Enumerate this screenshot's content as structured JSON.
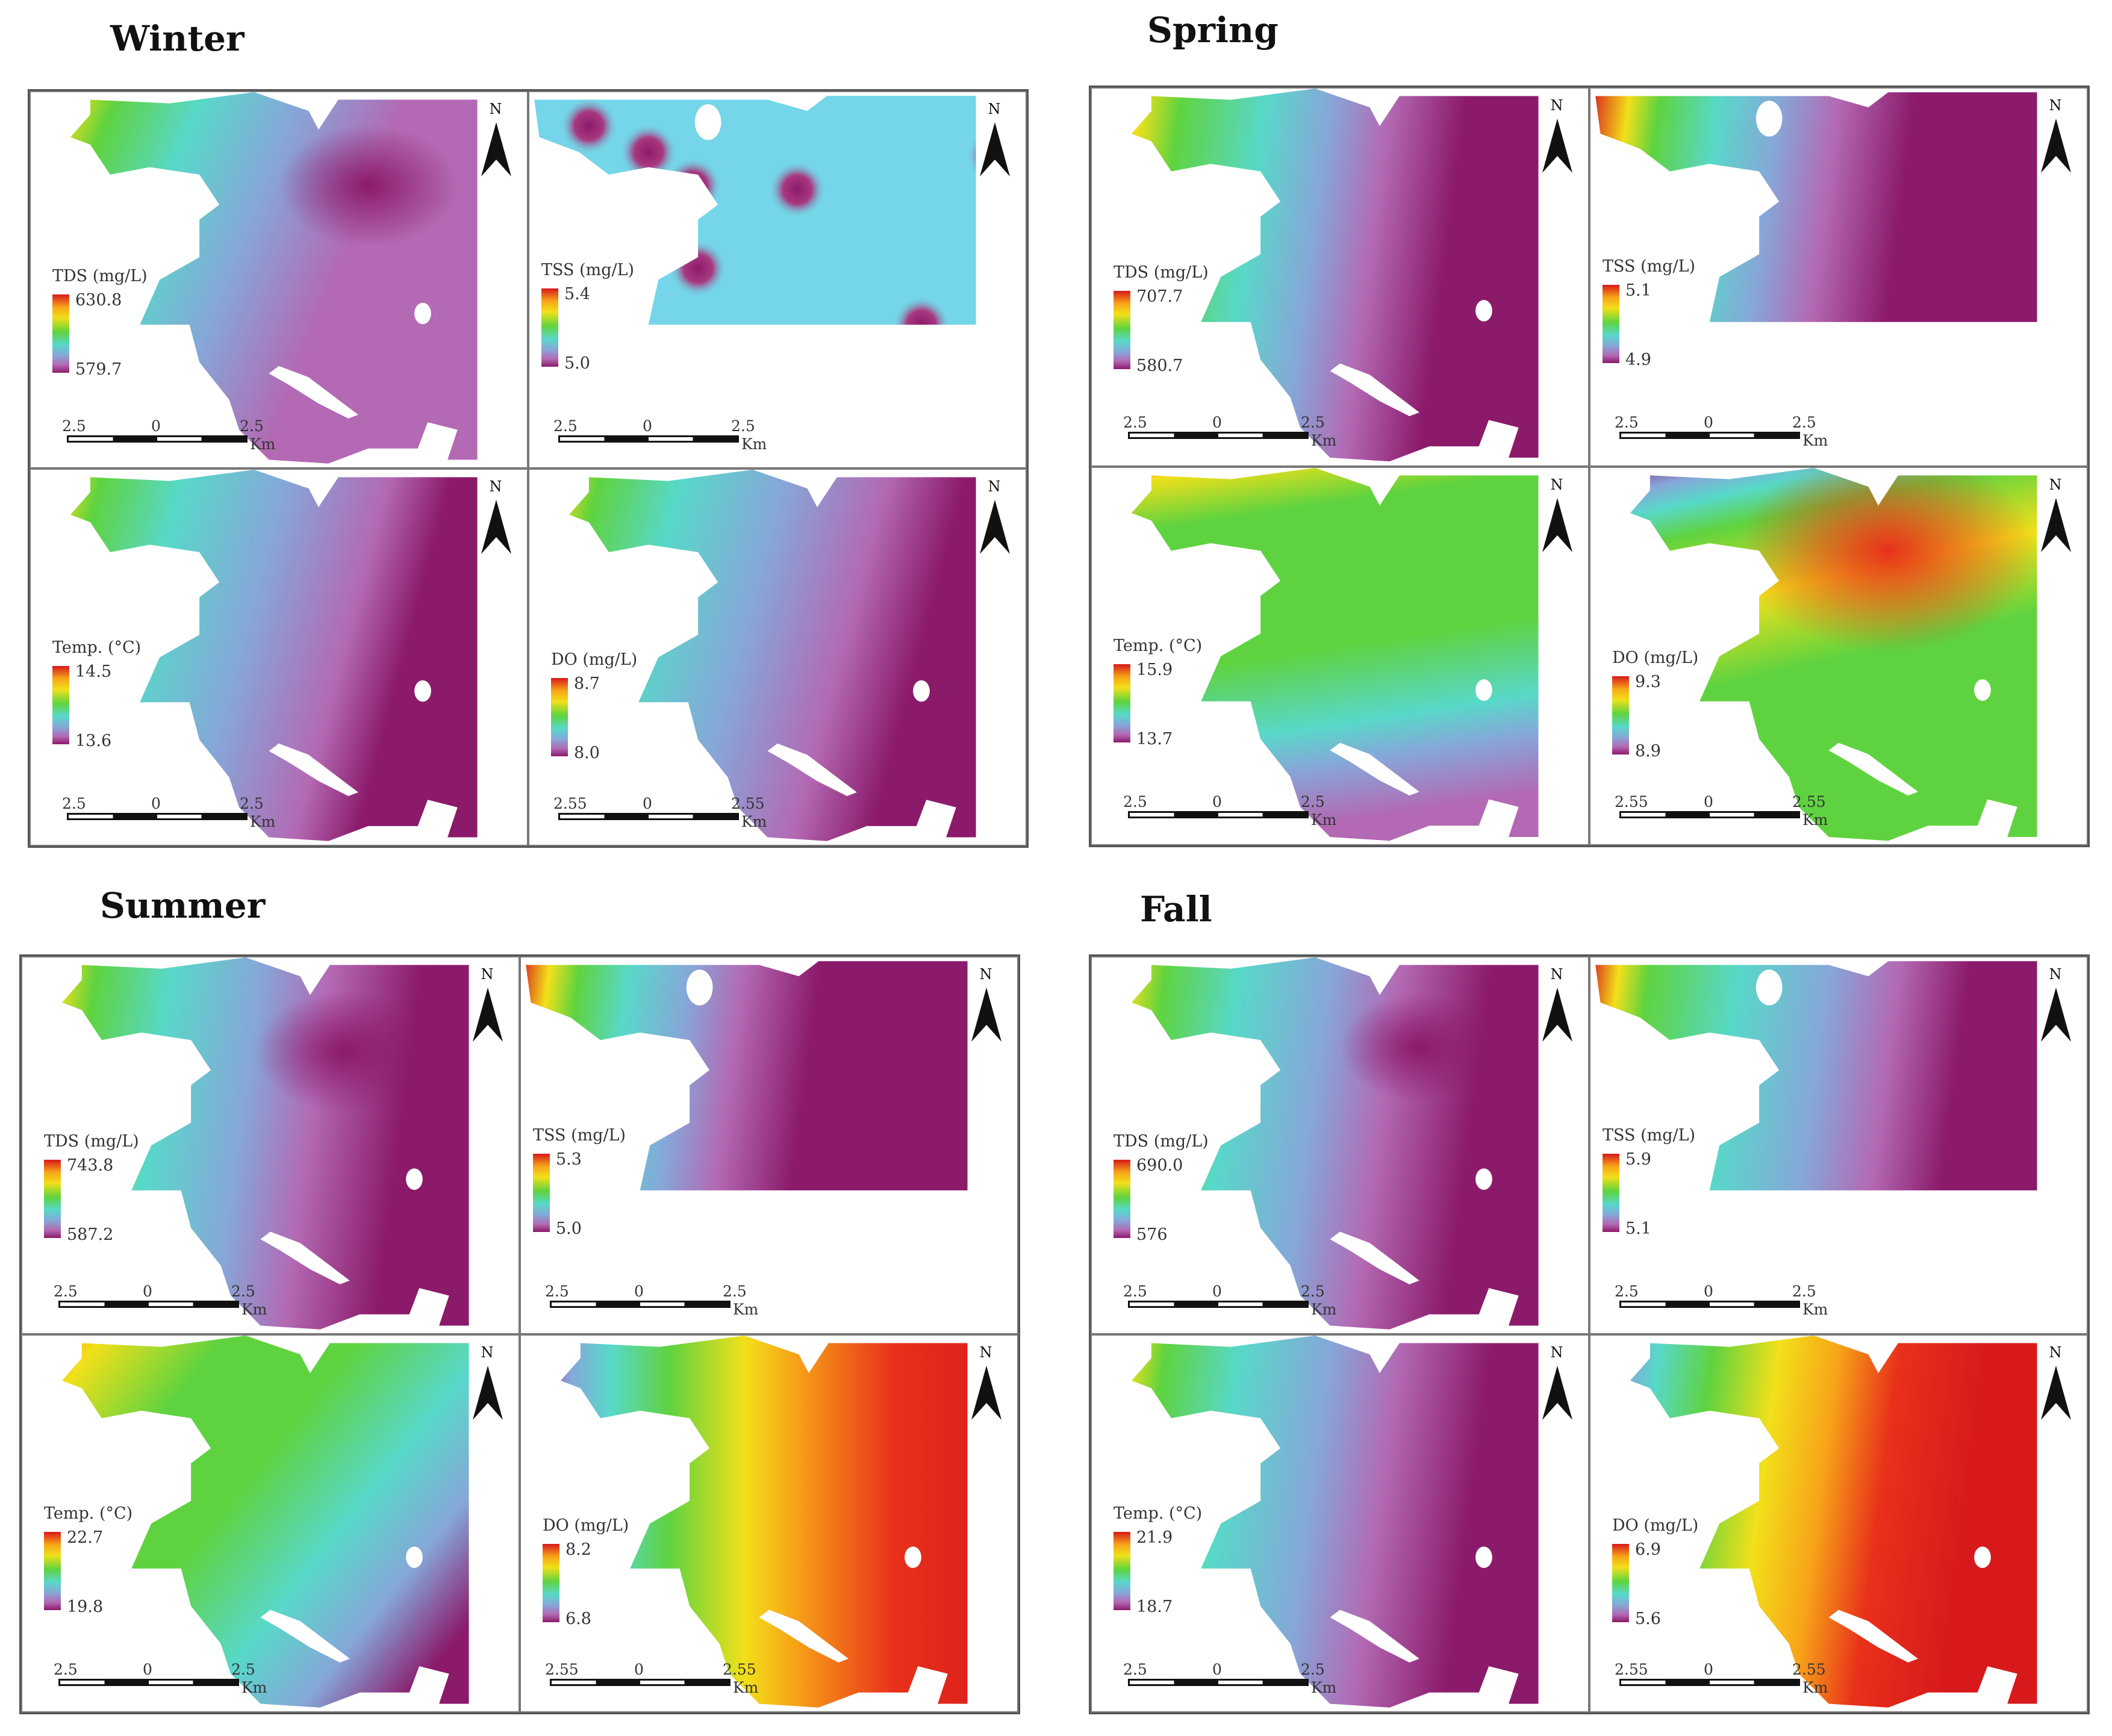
{
  "scale": {
    "left": "2.5",
    "mid": "0",
    "right": "2.5",
    "unit": "Km",
    "alt_left": "2.55",
    "alt_right": "2.55"
  },
  "north_label": "N",
  "colors": {
    "high": "#d7191c",
    "mid": "#5fd33f",
    "low_cyan": "#58d8c9",
    "low": "#8b1a6b"
  },
  "seasons": [
    {
      "title": "Winter",
      "panels": [
        {
          "param": "TDS (mg/L)",
          "max": "630.8",
          "min": "579.7",
          "scale_alt": false
        },
        {
          "param": "TSS (mg/L)",
          "max": "5.4",
          "min": "5.0",
          "scale_alt": false
        },
        {
          "param": "Temp. (°C)",
          "max": "14.5",
          "min": "13.6",
          "scale_alt": false
        },
        {
          "param": "DO (mg/L)",
          "max": "8.7",
          "min": "8.0",
          "scale_alt": true
        }
      ]
    },
    {
      "title": "Spring",
      "panels": [
        {
          "param": "TDS (mg/L)",
          "max": "707.7",
          "min": "580.7",
          "scale_alt": false
        },
        {
          "param": "TSS (mg/L)",
          "max": "5.1",
          "min": "4.9",
          "scale_alt": false
        },
        {
          "param": "Temp. (°C)",
          "max": "15.9",
          "min": "13.7",
          "scale_alt": false
        },
        {
          "param": "DO (mg/L)",
          "max": "9.3",
          "min": "8.9",
          "scale_alt": true
        }
      ]
    },
    {
      "title": "Summer",
      "panels": [
        {
          "param": "TDS (mg/L)",
          "max": "743.8",
          "min": "587.2",
          "scale_alt": false
        },
        {
          "param": "TSS (mg/L)",
          "max": "5.3",
          "min": "5.0",
          "scale_alt": false
        },
        {
          "param": "Temp. (°C)",
          "max": "22.7",
          "min": "19.8",
          "scale_alt": false
        },
        {
          "param": "DO (mg/L)",
          "max": "8.2",
          "min": "6.8",
          "scale_alt": true
        }
      ]
    },
    {
      "title": "Fall",
      "panels": [
        {
          "param": "TDS (mg/L)",
          "max": "690.0",
          "min": "576",
          "scale_alt": false
        },
        {
          "param": "TSS (mg/L)",
          "max": "5.9",
          "min": "5.1",
          "scale_alt": false
        },
        {
          "param": "Temp. (°C)",
          "max": "21.9",
          "min": "18.7",
          "scale_alt": false
        },
        {
          "param": "DO (mg/L)",
          "max": "6.9",
          "min": "5.6",
          "scale_alt": true
        }
      ]
    }
  ]
}
